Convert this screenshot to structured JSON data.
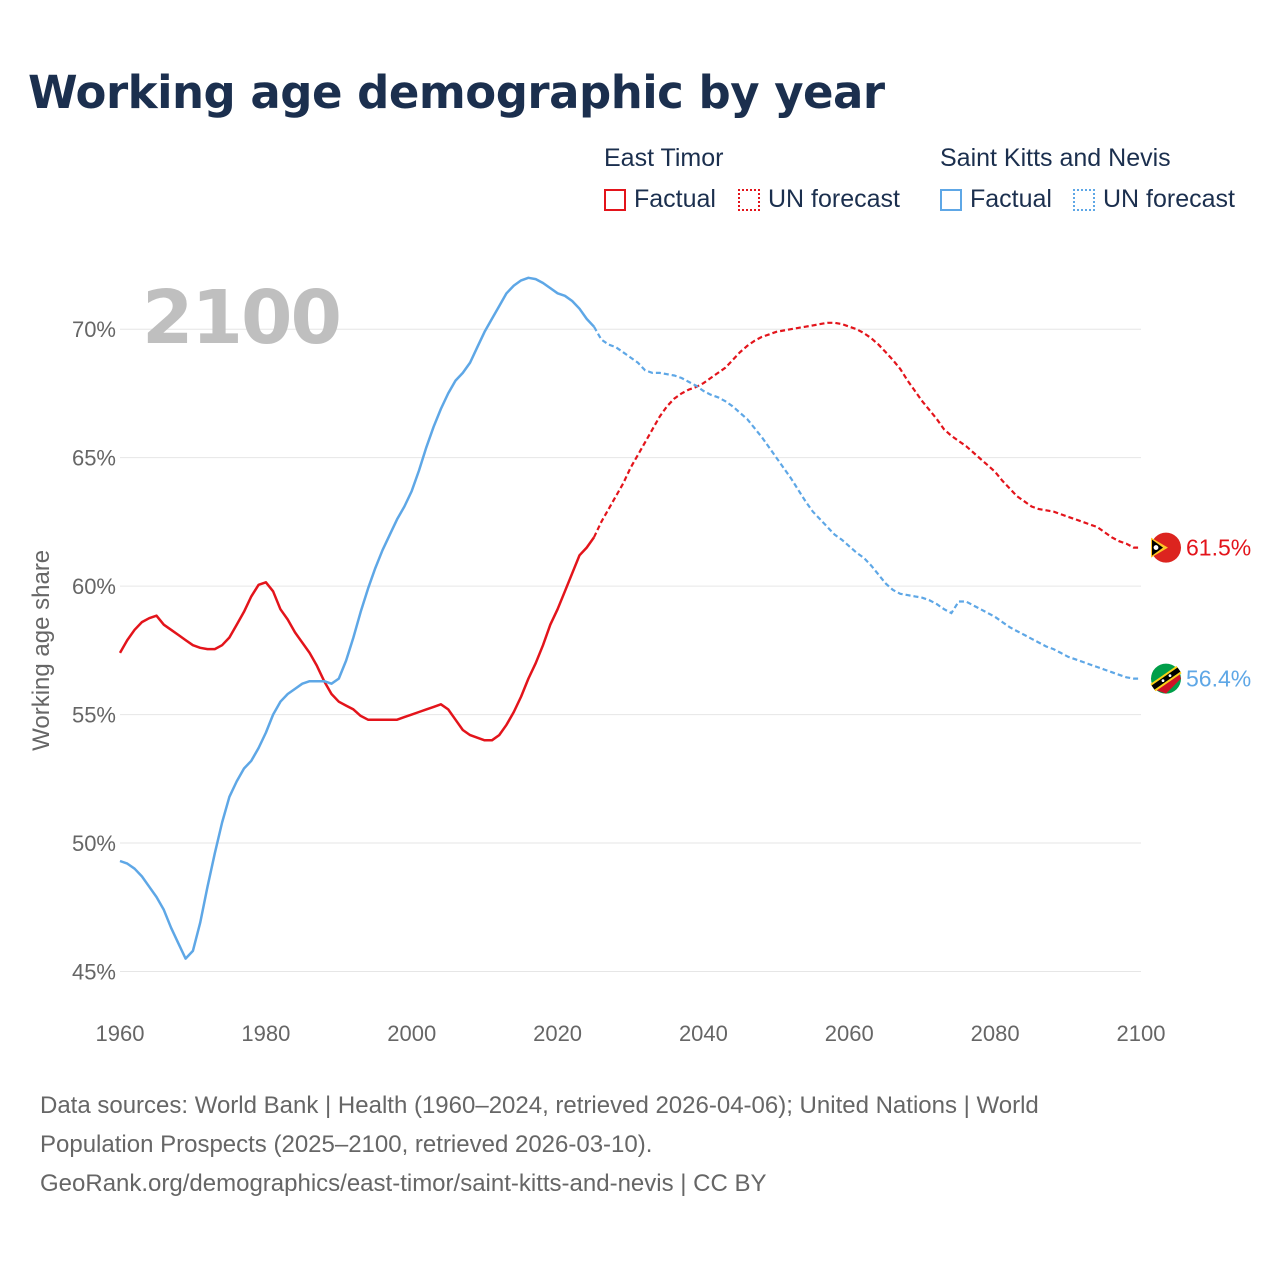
{
  "title": "Working age demographic by year",
  "legend": {
    "groups": [
      {
        "name": "East Timor",
        "factual": "Factual",
        "forecast": "UN forecast"
      },
      {
        "name": "Saint Kitts and Nevis",
        "factual": "Factual",
        "forecast": "UN forecast"
      }
    ]
  },
  "sources": {
    "line1": "Data sources: World Bank | Health (1960–2024, retrieved 2026-04-06); United Nations | World",
    "line2": "Population Prospects (2025–2100, retrieved 2026-03-10).",
    "line3": "GeoRank.org/demographics/east-timor/saint-kitts-and-nevis | CC BY"
  },
  "colors": {
    "east_timor": "#e3141b",
    "saint_kitts": "#5ea7e6",
    "grid": "#e6e6e6",
    "axis_text": "#666666",
    "year_watermark": "#bfbfbf"
  },
  "chart_data": {
    "type": "line",
    "title": "Working age demographic by year",
    "current_year_label": "2100",
    "xlabel": "",
    "ylabel": "Working age share",
    "xlim": [
      1960,
      2100
    ],
    "ylim": [
      43.5,
      72.5
    ],
    "x_ticks": [
      1960,
      1980,
      2000,
      2020,
      2040,
      2060,
      2080,
      2100
    ],
    "y_ticks": [
      45,
      50,
      55,
      60,
      65,
      70
    ],
    "y_tick_labels": [
      "45%",
      "50%",
      "55%",
      "60%",
      "65%",
      "70%"
    ],
    "forecast_start": 2025,
    "series": [
      {
        "name": "East Timor",
        "color": "#e3141b",
        "end_label": "61.5%",
        "flag": "east-timor-flag",
        "points": [
          [
            1960,
            57.4
          ],
          [
            1961,
            57.9
          ],
          [
            1962,
            58.3
          ],
          [
            1963,
            58.6
          ],
          [
            1964,
            58.75
          ],
          [
            1965,
            58.85
          ],
          [
            1966,
            58.5
          ],
          [
            1967,
            58.3
          ],
          [
            1968,
            58.1
          ],
          [
            1969,
            57.9
          ],
          [
            1970,
            57.7
          ],
          [
            1971,
            57.6
          ],
          [
            1972,
            57.55
          ],
          [
            1973,
            57.55
          ],
          [
            1974,
            57.7
          ],
          [
            1975,
            58.0
          ],
          [
            1976,
            58.5
          ],
          [
            1977,
            59.0
          ],
          [
            1978,
            59.6
          ],
          [
            1979,
            60.05
          ],
          [
            1980,
            60.15
          ],
          [
            1981,
            59.8
          ],
          [
            1982,
            59.1
          ],
          [
            1983,
            58.7
          ],
          [
            1984,
            58.2
          ],
          [
            1985,
            57.8
          ],
          [
            1986,
            57.4
          ],
          [
            1987,
            56.9
          ],
          [
            1988,
            56.3
          ],
          [
            1989,
            55.8
          ],
          [
            1990,
            55.5
          ],
          [
            1991,
            55.35
          ],
          [
            1992,
            55.2
          ],
          [
            1993,
            54.95
          ],
          [
            1994,
            54.8
          ],
          [
            1995,
            54.8
          ],
          [
            1996,
            54.8
          ],
          [
            1997,
            54.8
          ],
          [
            1998,
            54.8
          ],
          [
            1999,
            54.9
          ],
          [
            2000,
            55.0
          ],
          [
            2001,
            55.1
          ],
          [
            2002,
            55.2
          ],
          [
            2003,
            55.3
          ],
          [
            2004,
            55.4
          ],
          [
            2005,
            55.2
          ],
          [
            2006,
            54.8
          ],
          [
            2007,
            54.4
          ],
          [
            2008,
            54.2
          ],
          [
            2009,
            54.1
          ],
          [
            2010,
            54.0
          ],
          [
            2011,
            54.0
          ],
          [
            2012,
            54.2
          ],
          [
            2013,
            54.6
          ],
          [
            2014,
            55.1
          ],
          [
            2015,
            55.7
          ],
          [
            2016,
            56.4
          ],
          [
            2017,
            57.0
          ],
          [
            2018,
            57.7
          ],
          [
            2019,
            58.5
          ],
          [
            2020,
            59.1
          ],
          [
            2021,
            59.8
          ],
          [
            2022,
            60.5
          ],
          [
            2023,
            61.2
          ],
          [
            2024,
            61.5
          ],
          [
            2025,
            61.9
          ],
          [
            2026,
            62.5
          ],
          [
            2027,
            63.0
          ],
          [
            2028,
            63.5
          ],
          [
            2029,
            64.0
          ],
          [
            2030,
            64.6
          ],
          [
            2031,
            65.1
          ],
          [
            2032,
            65.6
          ],
          [
            2033,
            66.1
          ],
          [
            2034,
            66.6
          ],
          [
            2035,
            67.0
          ],
          [
            2036,
            67.3
          ],
          [
            2037,
            67.5
          ],
          [
            2038,
            67.65
          ],
          [
            2039,
            67.75
          ],
          [
            2040,
            67.9
          ],
          [
            2041,
            68.1
          ],
          [
            2042,
            68.3
          ],
          [
            2043,
            68.5
          ],
          [
            2044,
            68.8
          ],
          [
            2045,
            69.1
          ],
          [
            2046,
            69.35
          ],
          [
            2047,
            69.55
          ],
          [
            2048,
            69.7
          ],
          [
            2049,
            69.8
          ],
          [
            2050,
            69.9
          ],
          [
            2051,
            69.95
          ],
          [
            2052,
            70.0
          ],
          [
            2053,
            70.05
          ],
          [
            2054,
            70.1
          ],
          [
            2055,
            70.15
          ],
          [
            2056,
            70.2
          ],
          [
            2057,
            70.25
          ],
          [
            2058,
            70.25
          ],
          [
            2059,
            70.2
          ],
          [
            2060,
            70.1
          ],
          [
            2061,
            70.0
          ],
          [
            2062,
            69.85
          ],
          [
            2063,
            69.65
          ],
          [
            2064,
            69.4
          ],
          [
            2065,
            69.1
          ],
          [
            2066,
            68.8
          ],
          [
            2067,
            68.45
          ],
          [
            2068,
            68.0
          ],
          [
            2069,
            67.6
          ],
          [
            2070,
            67.2
          ],
          [
            2071,
            66.85
          ],
          [
            2072,
            66.5
          ],
          [
            2073,
            66.1
          ],
          [
            2074,
            65.85
          ],
          [
            2075,
            65.65
          ],
          [
            2076,
            65.45
          ],
          [
            2077,
            65.2
          ],
          [
            2078,
            64.95
          ],
          [
            2079,
            64.7
          ],
          [
            2080,
            64.45
          ],
          [
            2081,
            64.1
          ],
          [
            2082,
            63.8
          ],
          [
            2083,
            63.5
          ],
          [
            2084,
            63.3
          ],
          [
            2085,
            63.1
          ],
          [
            2086,
            63.0
          ],
          [
            2087,
            62.95
          ],
          [
            2088,
            62.9
          ],
          [
            2089,
            62.8
          ],
          [
            2090,
            62.7
          ],
          [
            2091,
            62.6
          ],
          [
            2092,
            62.5
          ],
          [
            2093,
            62.4
          ],
          [
            2094,
            62.3
          ],
          [
            2095,
            62.1
          ],
          [
            2096,
            61.9
          ],
          [
            2097,
            61.75
          ],
          [
            2098,
            61.65
          ],
          [
            2099,
            61.5
          ],
          [
            2100,
            61.5
          ]
        ]
      },
      {
        "name": "Saint Kitts and Nevis",
        "color": "#5ea7e6",
        "end_label": "56.4%",
        "flag": "saint-kitts-and-nevis-flag",
        "points": [
          [
            1960,
            49.3
          ],
          [
            1961,
            49.2
          ],
          [
            1962,
            49.0
          ],
          [
            1963,
            48.7
          ],
          [
            1964,
            48.3
          ],
          [
            1965,
            47.9
          ],
          [
            1966,
            47.4
          ],
          [
            1967,
            46.7
          ],
          [
            1968,
            46.1
          ],
          [
            1969,
            45.5
          ],
          [
            1970,
            45.8
          ],
          [
            1971,
            46.9
          ],
          [
            1972,
            48.3
          ],
          [
            1973,
            49.6
          ],
          [
            1974,
            50.8
          ],
          [
            1975,
            51.8
          ],
          [
            1976,
            52.4
          ],
          [
            1977,
            52.9
          ],
          [
            1978,
            53.2
          ],
          [
            1979,
            53.7
          ],
          [
            1980,
            54.3
          ],
          [
            1981,
            55.0
          ],
          [
            1982,
            55.5
          ],
          [
            1983,
            55.8
          ],
          [
            1984,
            56.0
          ],
          [
            1985,
            56.2
          ],
          [
            1986,
            56.3
          ],
          [
            1987,
            56.3
          ],
          [
            1988,
            56.3
          ],
          [
            1989,
            56.2
          ],
          [
            1990,
            56.4
          ],
          [
            1991,
            57.1
          ],
          [
            1992,
            58.0
          ],
          [
            1993,
            59.0
          ],
          [
            1994,
            59.9
          ],
          [
            1995,
            60.7
          ],
          [
            1996,
            61.4
          ],
          [
            1997,
            62.0
          ],
          [
            1998,
            62.6
          ],
          [
            1999,
            63.1
          ],
          [
            2000,
            63.7
          ],
          [
            2001,
            64.5
          ],
          [
            2002,
            65.4
          ],
          [
            2003,
            66.2
          ],
          [
            2004,
            66.9
          ],
          [
            2005,
            67.5
          ],
          [
            2006,
            68.0
          ],
          [
            2007,
            68.3
          ],
          [
            2008,
            68.7
          ],
          [
            2009,
            69.3
          ],
          [
            2010,
            69.9
          ],
          [
            2011,
            70.4
          ],
          [
            2012,
            70.9
          ],
          [
            2013,
            71.4
          ],
          [
            2014,
            71.7
          ],
          [
            2015,
            71.9
          ],
          [
            2016,
            72.0
          ],
          [
            2017,
            71.95
          ],
          [
            2018,
            71.8
          ],
          [
            2019,
            71.6
          ],
          [
            2020,
            71.4
          ],
          [
            2021,
            71.3
          ],
          [
            2022,
            71.1
          ],
          [
            2023,
            70.8
          ],
          [
            2024,
            70.4
          ],
          [
            2025,
            70.1
          ],
          [
            2026,
            69.6
          ],
          [
            2027,
            69.4
          ],
          [
            2028,
            69.3
          ],
          [
            2029,
            69.1
          ],
          [
            2030,
            68.9
          ],
          [
            2031,
            68.7
          ],
          [
            2032,
            68.4
          ],
          [
            2033,
            68.3
          ],
          [
            2034,
            68.3
          ],
          [
            2035,
            68.25
          ],
          [
            2036,
            68.2
          ],
          [
            2037,
            68.1
          ],
          [
            2038,
            67.95
          ],
          [
            2039,
            67.8
          ],
          [
            2040,
            67.6
          ],
          [
            2041,
            67.45
          ],
          [
            2042,
            67.35
          ],
          [
            2043,
            67.2
          ],
          [
            2044,
            67.0
          ],
          [
            2045,
            66.75
          ],
          [
            2046,
            66.5
          ],
          [
            2047,
            66.15
          ],
          [
            2048,
            65.8
          ],
          [
            2049,
            65.4
          ],
          [
            2050,
            65.0
          ],
          [
            2051,
            64.6
          ],
          [
            2052,
            64.2
          ],
          [
            2053,
            63.75
          ],
          [
            2054,
            63.3
          ],
          [
            2055,
            62.9
          ],
          [
            2056,
            62.6
          ],
          [
            2057,
            62.3
          ],
          [
            2058,
            62.0
          ],
          [
            2059,
            61.8
          ],
          [
            2060,
            61.55
          ],
          [
            2061,
            61.3
          ],
          [
            2062,
            61.1
          ],
          [
            2063,
            60.8
          ],
          [
            2064,
            60.45
          ],
          [
            2065,
            60.1
          ],
          [
            2066,
            59.85
          ],
          [
            2067,
            59.7
          ],
          [
            2068,
            59.65
          ],
          [
            2069,
            59.6
          ],
          [
            2070,
            59.55
          ],
          [
            2071,
            59.45
          ],
          [
            2072,
            59.3
          ],
          [
            2073,
            59.1
          ],
          [
            2074,
            58.95
          ],
          [
            2075,
            59.4
          ],
          [
            2076,
            59.4
          ],
          [
            2077,
            59.25
          ],
          [
            2078,
            59.1
          ],
          [
            2079,
            58.95
          ],
          [
            2080,
            58.8
          ],
          [
            2081,
            58.6
          ],
          [
            2082,
            58.4
          ],
          [
            2083,
            58.25
          ],
          [
            2084,
            58.1
          ],
          [
            2085,
            57.95
          ],
          [
            2086,
            57.8
          ],
          [
            2087,
            57.65
          ],
          [
            2088,
            57.55
          ],
          [
            2089,
            57.4
          ],
          [
            2090,
            57.25
          ],
          [
            2091,
            57.15
          ],
          [
            2092,
            57.05
          ],
          [
            2093,
            56.95
          ],
          [
            2094,
            56.85
          ],
          [
            2095,
            56.75
          ],
          [
            2096,
            56.65
          ],
          [
            2097,
            56.55
          ],
          [
            2098,
            56.45
          ],
          [
            2099,
            56.4
          ],
          [
            2100,
            56.4
          ]
        ]
      }
    ]
  }
}
